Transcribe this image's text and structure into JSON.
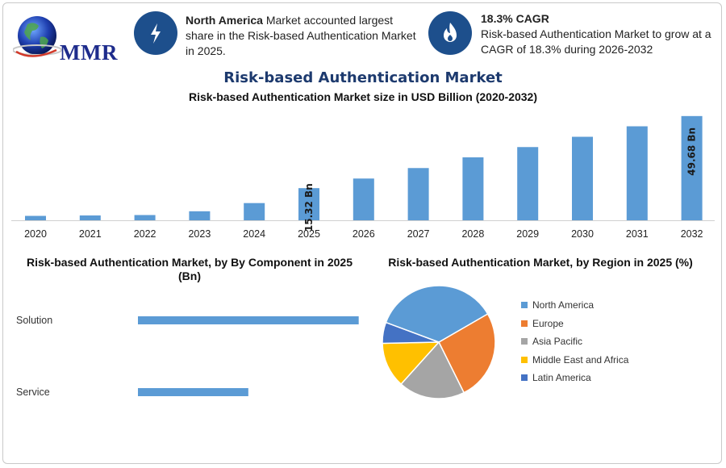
{
  "logo": {
    "text": "MMR"
  },
  "info_left": {
    "bold": "North America",
    "text": " Market accounted largest share in the Risk-based Authentication Market in 2025.",
    "icon": "lightning-icon"
  },
  "info_right": {
    "bold": "18.3% CAGR",
    "text": "Risk-based Authentication Market to grow at a CAGR of 18.3% during 2026-2032",
    "icon": "flame-icon"
  },
  "colors": {
    "bar": "#5b9bd5",
    "title": "#1d3a6e",
    "icon_bg": "#1d4f8c"
  },
  "chart_data": [
    {
      "type": "bar",
      "title": "Risk-based Authentication Market",
      "subtitle": "Risk-based Authentication Market size in USD Billion (2020-2032)",
      "categories": [
        "2020",
        "2021",
        "2022",
        "2023",
        "2024",
        "2025",
        "2026",
        "2027",
        "2028",
        "2029",
        "2030",
        "2031",
        "2032"
      ],
      "values": [
        2.1,
        2.3,
        2.5,
        4.3,
        8.2,
        15.32,
        19.9,
        24.9,
        30.0,
        34.9,
        39.8,
        44.8,
        49.68
      ],
      "ylim": [
        0,
        50
      ],
      "grid": false,
      "data_labels": [
        {
          "category": "2025",
          "text": "15.32 Bn"
        },
        {
          "category": "2032",
          "text": "49.68 Bn"
        }
      ]
    },
    {
      "type": "bar",
      "orientation": "horizontal",
      "title": "Risk-based Authentication Market, by By Component in 2025 (Bn)",
      "categories": [
        "Solution",
        "Service"
      ],
      "values": [
        10.6,
        5.3
      ],
      "xlim": [
        0,
        11
      ]
    },
    {
      "type": "pie",
      "title": "Risk-based Authentication Market, by Region in 2025 (%)",
      "legend_position": "right",
      "slices": [
        {
          "label": "North America",
          "value": 36,
          "color": "#5b9bd5"
        },
        {
          "label": "Europe",
          "value": 26,
          "color": "#ed7d31"
        },
        {
          "label": "Asia Pacific",
          "value": 19,
          "color": "#a5a5a5"
        },
        {
          "label": "Middle East and Africa",
          "value": 13,
          "color": "#ffc000"
        },
        {
          "label": "Latin America",
          "value": 6,
          "color": "#4472c4"
        }
      ]
    }
  ]
}
